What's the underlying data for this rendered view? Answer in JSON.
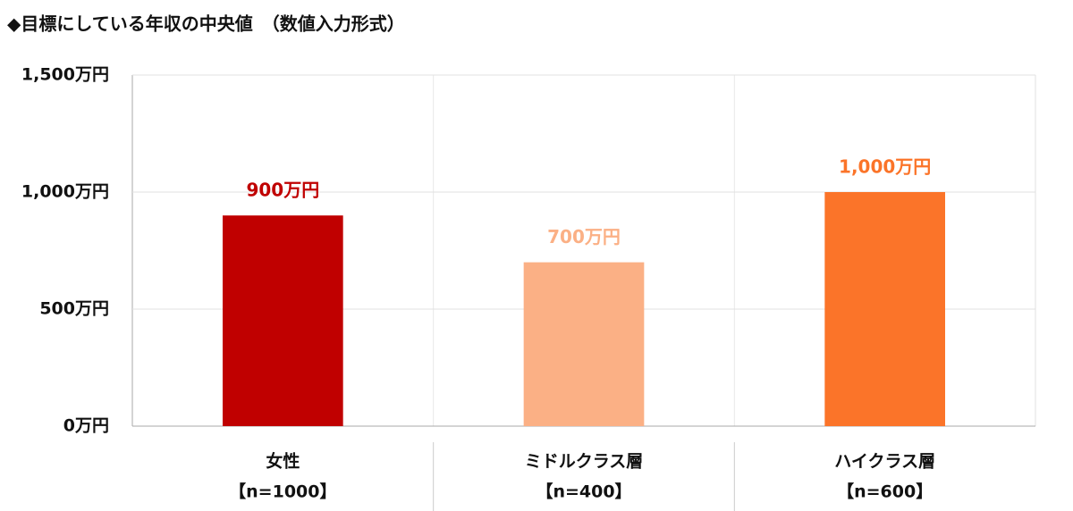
{
  "chart_data": {
    "type": "bar",
    "title": "◆目標にしている年収の中央値　（数値入力形式）",
    "categories": [
      "女性",
      "ミドルクラス層",
      "ハイクラス層"
    ],
    "category_notes": [
      "【n=1000】",
      "【n=400】",
      "【n=600】"
    ],
    "values": [
      900,
      700,
      1000
    ],
    "value_labels": [
      "900万円",
      "700万円",
      "1,000万円"
    ],
    "colors": [
      "#c00000",
      "#fbb085",
      "#fb7429"
    ],
    "ylim": [
      0,
      1500
    ],
    "yticks": [
      {
        "value": 0,
        "label": "0万円"
      },
      {
        "value": 500,
        "label": "500万円"
      },
      {
        "value": 1000,
        "label": "1,000万円"
      },
      {
        "value": 1500,
        "label": "1,500万円"
      }
    ],
    "grid": true
  }
}
